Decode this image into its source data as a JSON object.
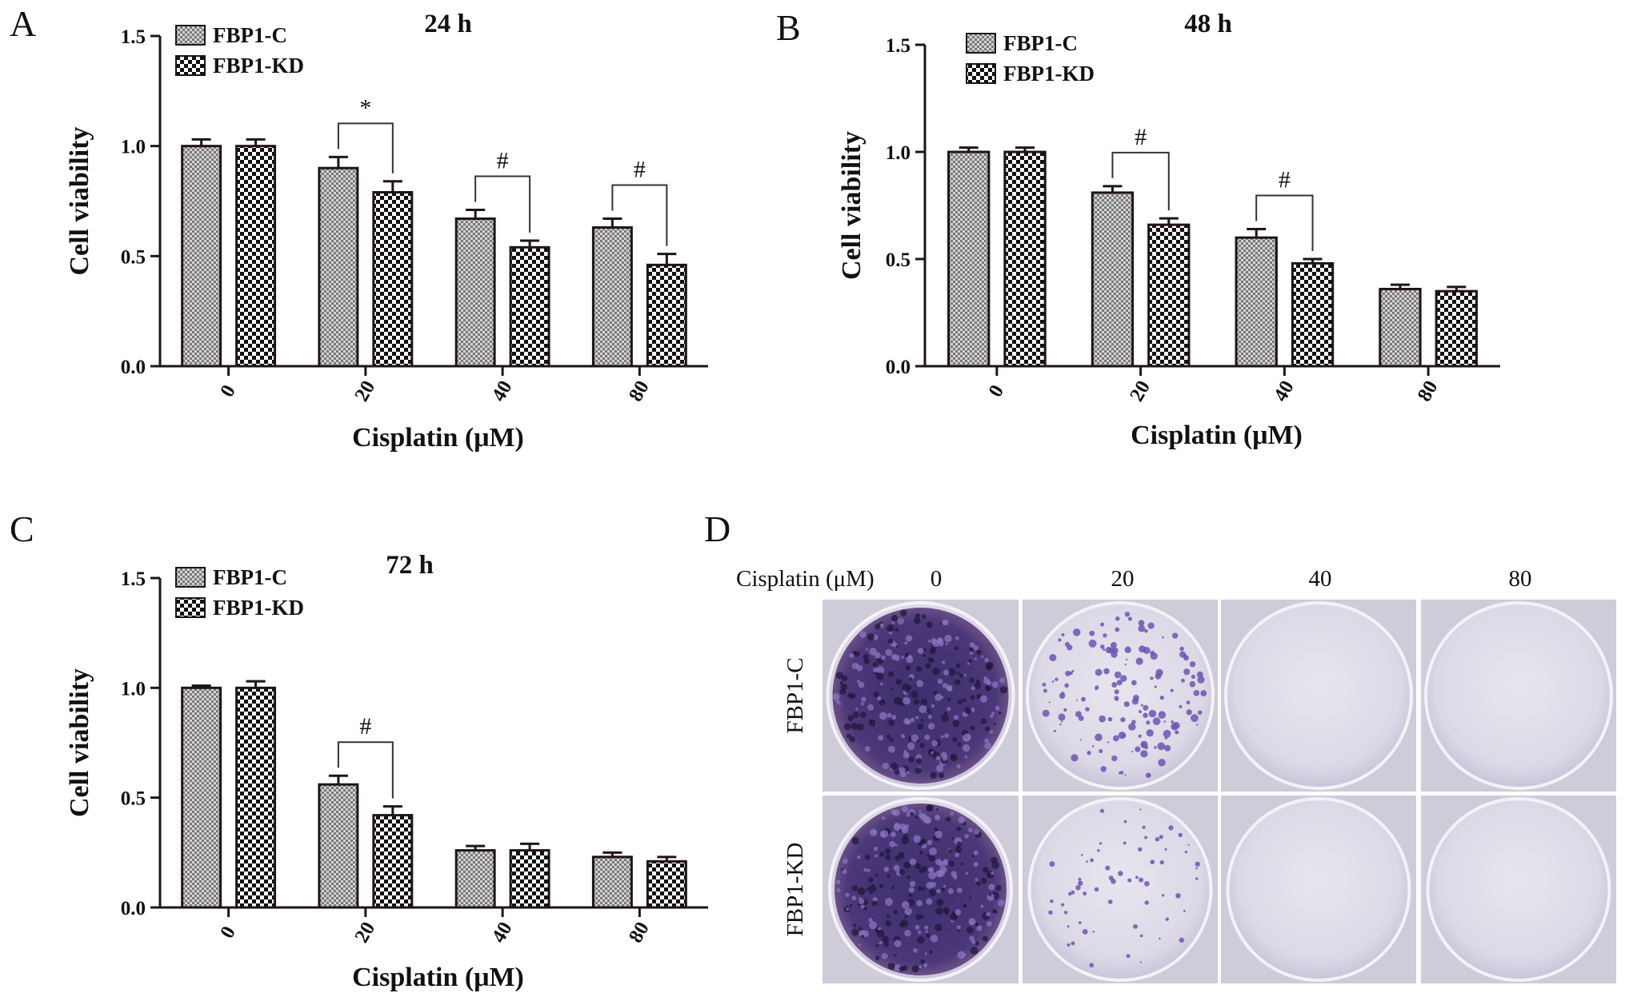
{
  "colors": {
    "bar_stroke": "#1f1416",
    "axis": "#1f1416",
    "fbp1c_fill": "#b9b9b9",
    "fbp1kd_fill": "#111111",
    "stain_dense": "#3a2a6a",
    "stain_colony": "#6a56b0",
    "plate_bg": "#d9d5e4"
  },
  "chart_data": [
    {
      "panel": "A",
      "type": "bar",
      "title": "24 h",
      "xlabel": "Cisplatin (μM)",
      "ylabel": "Cell viability",
      "categories": [
        "0",
        "20",
        "40",
        "80"
      ],
      "ylim": [
        0,
        1.5
      ],
      "yticks": [
        "0.0",
        "0.5",
        "1.0",
        "1.5"
      ],
      "series": [
        {
          "name": "FBP1-C",
          "values": [
            1.0,
            0.9,
            0.67,
            0.63
          ],
          "errors": [
            0.03,
            0.05,
            0.04,
            0.04
          ]
        },
        {
          "name": "FBP1-KD",
          "values": [
            1.0,
            0.79,
            0.54,
            0.46
          ],
          "errors": [
            0.03,
            0.05,
            0.03,
            0.05
          ]
        }
      ],
      "annotations": [
        {
          "category": "20",
          "text": "*"
        },
        {
          "category": "40",
          "text": "#"
        },
        {
          "category": "80",
          "text": "#"
        }
      ],
      "legend": "top-left",
      "grid": false
    },
    {
      "panel": "B",
      "type": "bar",
      "title": "48 h",
      "xlabel": "Cisplatin (μM)",
      "ylabel": "Cell viability",
      "categories": [
        "0",
        "20",
        "40",
        "80"
      ],
      "ylim": [
        0,
        1.5
      ],
      "yticks": [
        "0.0",
        "0.5",
        "1.0",
        "1.5"
      ],
      "series": [
        {
          "name": "FBP1-C",
          "values": [
            1.0,
            0.81,
            0.6,
            0.36
          ],
          "errors": [
            0.02,
            0.03,
            0.04,
            0.02
          ]
        },
        {
          "name": "FBP1-KD",
          "values": [
            1.0,
            0.66,
            0.48,
            0.35
          ],
          "errors": [
            0.02,
            0.03,
            0.02,
            0.02
          ]
        }
      ],
      "annotations": [
        {
          "category": "20",
          "text": "#"
        },
        {
          "category": "40",
          "text": "#"
        }
      ],
      "legend": "top-left",
      "grid": false
    },
    {
      "panel": "C",
      "type": "bar",
      "title": "72 h",
      "xlabel": "Cisplatin (μM)",
      "ylabel": "Cell viability",
      "categories": [
        "0",
        "20",
        "40",
        "80"
      ],
      "ylim": [
        0,
        1.5
      ],
      "yticks": [
        "0.0",
        "0.5",
        "1.0",
        "1.5"
      ],
      "series": [
        {
          "name": "FBP1-C",
          "values": [
            1.0,
            0.56,
            0.26,
            0.23
          ],
          "errors": [
            0.01,
            0.04,
            0.02,
            0.02
          ]
        },
        {
          "name": "FBP1-KD",
          "values": [
            1.0,
            0.42,
            0.26,
            0.21
          ],
          "errors": [
            0.03,
            0.04,
            0.03,
            0.02
          ]
        }
      ],
      "annotations": [
        {
          "category": "20",
          "text": "#"
        }
      ],
      "legend": "top-left",
      "grid": false
    }
  ],
  "photo_panel": {
    "panel": "D",
    "header_label": "Cisplatin (μM)",
    "columns": [
      "0",
      "20",
      "40",
      "80"
    ],
    "rows": [
      "FBP1-C",
      "FBP1-KD"
    ],
    "colony_density": [
      [
        1.0,
        0.35,
        0.0,
        0.0
      ],
      [
        1.0,
        0.15,
        0.0,
        0.0
      ]
    ]
  }
}
